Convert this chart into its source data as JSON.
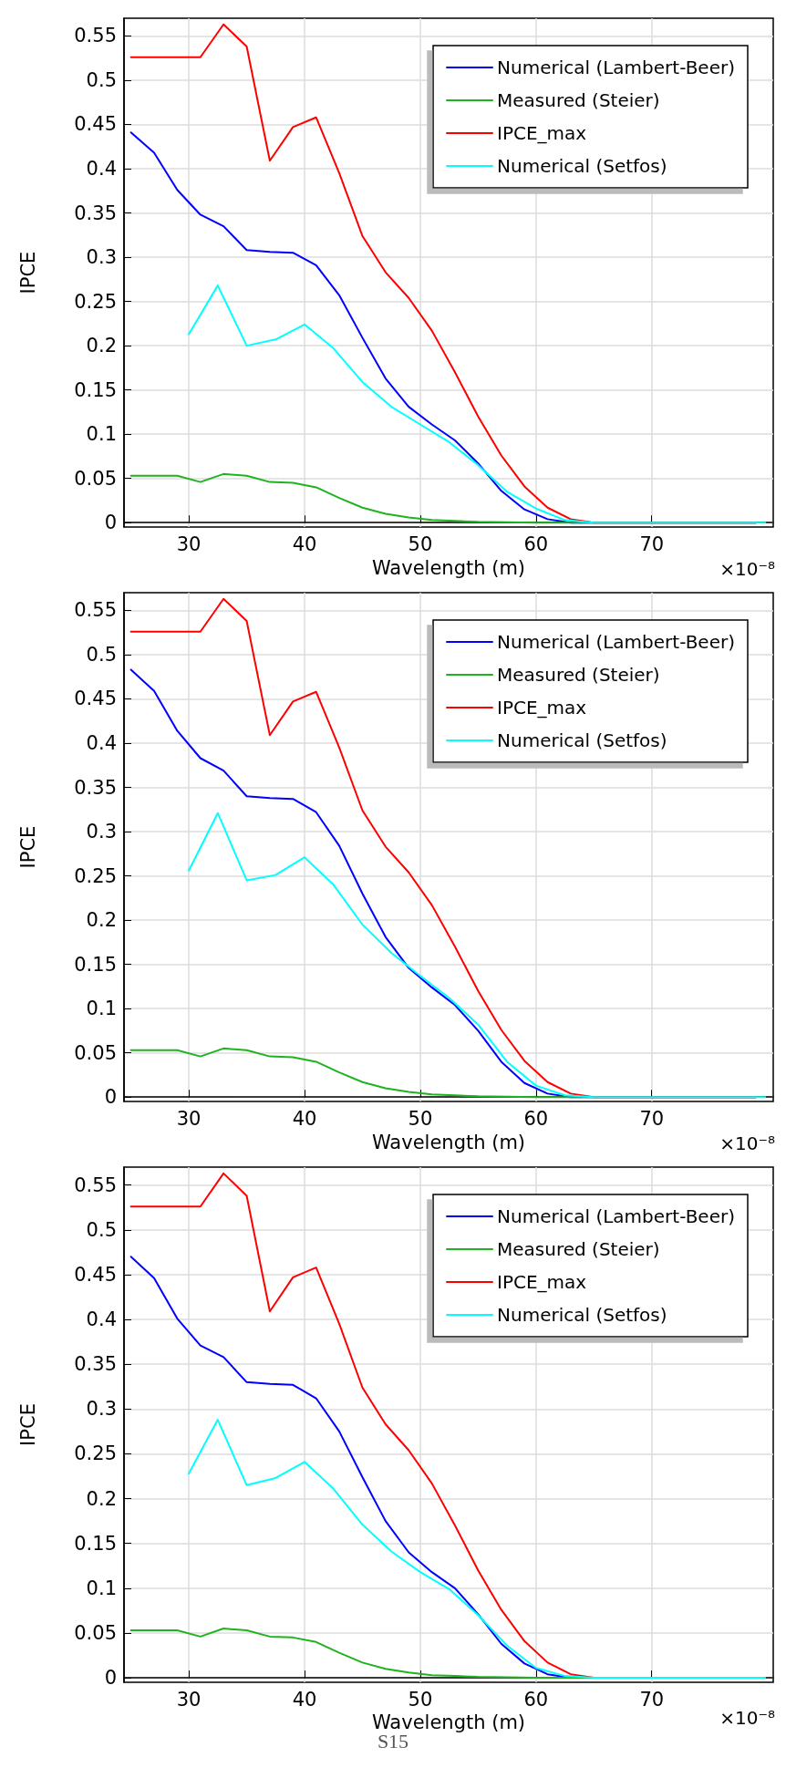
{
  "chart_data": [
    {
      "type": "line",
      "xlabel": "Wavelength (m)",
      "ylabel": "IPCE",
      "xlim": [
        24.4,
        80.5
      ],
      "ylim": [
        -0.005,
        0.57
      ],
      "xticks": [
        30,
        40,
        50,
        60,
        70
      ],
      "yticks": [
        0,
        0.05,
        0.1,
        0.15,
        0.2,
        0.25,
        0.3,
        0.35,
        0.4,
        0.45,
        0.5,
        0.55
      ],
      "grid": true,
      "legend": "top right",
      "marker": "none",
      "line_style": "solid",
      "annotations": [
        "×10⁻⁸"
      ],
      "series": [
        {
          "name": "Numerical (Lambert-Beer)",
          "color": "#0000ff",
          "x": [
            25,
            27,
            29,
            31,
            33,
            35,
            37,
            39,
            41,
            43,
            45,
            47,
            49,
            51,
            53,
            55,
            57,
            59,
            61,
            63,
            79
          ],
          "values": [
            0.441,
            0.418,
            0.376,
            0.348,
            0.335,
            0.308,
            0.306,
            0.305,
            0.291,
            0.257,
            0.209,
            0.163,
            0.131,
            0.111,
            0.093,
            0.067,
            0.036,
            0.015,
            0.004,
            0,
            0
          ]
        },
        {
          "name": "Measured (Steier)",
          "color": "#1fb31f",
          "x": [
            25,
            27,
            29,
            31,
            33,
            35,
            37,
            39,
            41,
            43,
            45,
            47,
            49,
            51,
            53,
            55,
            60,
            79
          ],
          "values": [
            0.053,
            0.053,
            0.053,
            0.046,
            0.055,
            0.053,
            0.046,
            0.045,
            0.04,
            0.028,
            0.017,
            0.01,
            0.006,
            0.003,
            0.002,
            0.001,
            0,
            0
          ]
        },
        {
          "name": "IPCE_max",
          "color": "#ff0000",
          "x": [
            25,
            27,
            29,
            31,
            33,
            35,
            37,
            39,
            41,
            43,
            45,
            47,
            49,
            51,
            53,
            55,
            57,
            59,
            61,
            63,
            65,
            70,
            79
          ],
          "values": [
            0.526,
            0.526,
            0.526,
            0.526,
            0.563,
            0.538,
            0.409,
            0.447,
            0.458,
            0.395,
            0.324,
            0.283,
            0.254,
            0.217,
            0.17,
            0.12,
            0.076,
            0.041,
            0.017,
            0.004,
            0,
            0,
            0
          ]
        },
        {
          "name": "Numerical (Setfos)",
          "color": "#00ffff",
          "x": [
            30,
            32.5,
            35,
            37.5,
            40,
            42.5,
            45,
            47.5,
            50,
            52.5,
            55,
            57.5,
            60,
            62.5,
            65,
            79.8
          ],
          "values": [
            0.213,
            0.268,
            0.2,
            0.207,
            0.224,
            0.197,
            0.159,
            0.131,
            0.111,
            0.091,
            0.065,
            0.035,
            0.016,
            0.003,
            0,
            0
          ]
        }
      ]
    },
    {
      "type": "line",
      "xlabel": "Wavelength (m)",
      "ylabel": "IPCE",
      "xlim": [
        24.4,
        80.5
      ],
      "ylim": [
        -0.005,
        0.57
      ],
      "xticks": [
        30,
        40,
        50,
        60,
        70
      ],
      "yticks": [
        0,
        0.05,
        0.1,
        0.15,
        0.2,
        0.25,
        0.3,
        0.35,
        0.4,
        0.45,
        0.5,
        0.55
      ],
      "grid": true,
      "legend": "top right",
      "marker": "none",
      "line_style": "solid",
      "annotations": [
        "×10⁻⁸"
      ],
      "series": [
        {
          "name": "Numerical (Lambert-Beer)",
          "color": "#0000ff",
          "x": [
            25,
            27,
            29,
            31,
            33,
            35,
            37,
            39,
            41,
            43,
            45,
            47,
            49,
            51,
            53,
            55,
            57,
            59,
            61,
            63,
            79
          ],
          "values": [
            0.483,
            0.459,
            0.414,
            0.383,
            0.369,
            0.34,
            0.338,
            0.337,
            0.322,
            0.284,
            0.23,
            0.181,
            0.146,
            0.124,
            0.104,
            0.075,
            0.04,
            0.016,
            0.004,
            0,
            0
          ]
        },
        {
          "name": "Measured (Steier)",
          "color": "#1fb31f",
          "x": [
            25,
            27,
            29,
            31,
            33,
            35,
            37,
            39,
            41,
            43,
            45,
            47,
            49,
            51,
            53,
            55,
            60,
            79
          ],
          "values": [
            0.053,
            0.053,
            0.053,
            0.046,
            0.055,
            0.053,
            0.046,
            0.045,
            0.04,
            0.028,
            0.017,
            0.01,
            0.006,
            0.003,
            0.002,
            0.001,
            0,
            0
          ]
        },
        {
          "name": "IPCE_max",
          "color": "#ff0000",
          "x": [
            25,
            27,
            29,
            31,
            33,
            35,
            37,
            39,
            41,
            43,
            45,
            47,
            49,
            51,
            53,
            55,
            57,
            59,
            61,
            63,
            65,
            70,
            79
          ],
          "values": [
            0.526,
            0.526,
            0.526,
            0.526,
            0.563,
            0.538,
            0.409,
            0.447,
            0.458,
            0.395,
            0.324,
            0.283,
            0.254,
            0.217,
            0.17,
            0.12,
            0.076,
            0.041,
            0.017,
            0.004,
            0,
            0,
            0
          ]
        },
        {
          "name": "Numerical (Setfos)",
          "color": "#00ffff",
          "x": [
            30,
            32.5,
            35,
            37.5,
            40,
            42.5,
            45,
            47.5,
            50,
            52.5,
            55,
            57.5,
            60,
            62.5,
            65,
            79.8
          ],
          "values": [
            0.256,
            0.321,
            0.245,
            0.251,
            0.271,
            0.24,
            0.195,
            0.163,
            0.137,
            0.112,
            0.082,
            0.04,
            0.013,
            0.002,
            0,
            0
          ]
        }
      ]
    },
    {
      "type": "line",
      "xlabel": "Wavelength (m)",
      "ylabel": "IPCE",
      "xlim": [
        24.4,
        80.5
      ],
      "ylim": [
        -0.005,
        0.57
      ],
      "xticks": [
        30,
        40,
        50,
        60,
        70
      ],
      "yticks": [
        0,
        0.05,
        0.1,
        0.15,
        0.2,
        0.25,
        0.3,
        0.35,
        0.4,
        0.45,
        0.5,
        0.55
      ],
      "grid": true,
      "legend": "top right",
      "marker": "none",
      "line_style": "solid",
      "annotations": [
        "×10⁻⁸",
        "S15"
      ],
      "series": [
        {
          "name": "Numerical (Lambert-Beer)",
          "color": "#0000ff",
          "x": [
            25,
            27,
            29,
            31,
            33,
            35,
            37,
            39,
            41,
            43,
            45,
            47,
            49,
            51,
            53,
            55,
            57,
            59,
            61,
            63,
            79
          ],
          "values": [
            0.47,
            0.446,
            0.401,
            0.371,
            0.358,
            0.33,
            0.328,
            0.327,
            0.312,
            0.275,
            0.224,
            0.175,
            0.14,
            0.118,
            0.1,
            0.071,
            0.038,
            0.016,
            0.004,
            0,
            0
          ]
        },
        {
          "name": "Measured (Steier)",
          "color": "#1fb31f",
          "x": [
            25,
            27,
            29,
            31,
            33,
            35,
            37,
            39,
            41,
            43,
            45,
            47,
            49,
            51,
            53,
            55,
            60,
            79
          ],
          "values": [
            0.053,
            0.053,
            0.053,
            0.046,
            0.055,
            0.053,
            0.046,
            0.045,
            0.04,
            0.028,
            0.017,
            0.01,
            0.006,
            0.003,
            0.002,
            0.001,
            0,
            0
          ]
        },
        {
          "name": "IPCE_max",
          "color": "#ff0000",
          "x": [
            25,
            27,
            29,
            31,
            33,
            35,
            37,
            39,
            41,
            43,
            45,
            47,
            49,
            51,
            53,
            55,
            57,
            59,
            61,
            63,
            65,
            70,
            79
          ],
          "values": [
            0.526,
            0.526,
            0.526,
            0.526,
            0.563,
            0.538,
            0.409,
            0.447,
            0.458,
            0.395,
            0.324,
            0.283,
            0.254,
            0.217,
            0.17,
            0.12,
            0.076,
            0.041,
            0.017,
            0.004,
            0,
            0,
            0
          ]
        },
        {
          "name": "Numerical (Setfos)",
          "color": "#00ffff",
          "x": [
            30,
            32.5,
            35,
            37.5,
            40,
            42.5,
            45,
            47.5,
            50,
            52.5,
            55,
            57.5,
            60,
            62.5,
            65,
            79.8
          ],
          "values": [
            0.228,
            0.288,
            0.215,
            0.223,
            0.241,
            0.211,
            0.171,
            0.141,
            0.118,
            0.099,
            0.07,
            0.036,
            0.011,
            0.002,
            0,
            0
          ]
        }
      ]
    }
  ]
}
